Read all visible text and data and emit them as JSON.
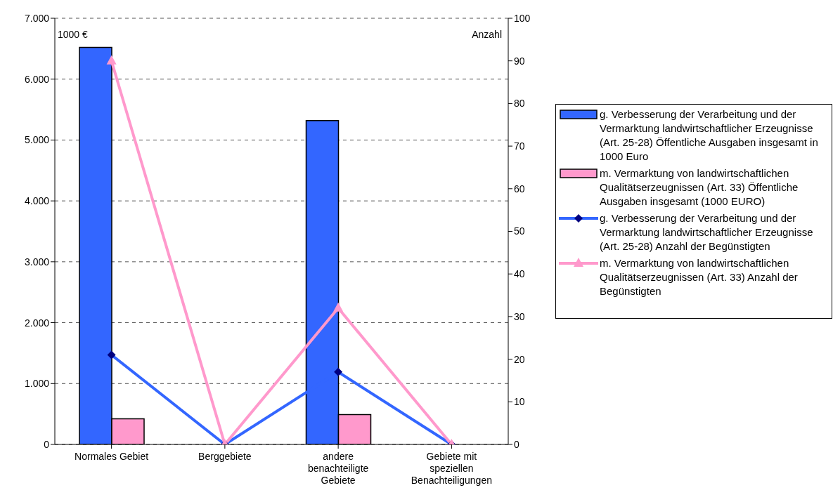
{
  "chart_data": {
    "type": "bar",
    "categories": [
      "Normales Gebiet",
      "Berggebiete",
      "andere benachteiligte Gebiete",
      "Gebiete mit speziellen Benachteiligungen"
    ],
    "ylabel": "1000 €",
    "y2label": "Anzahl",
    "ylim": [
      0,
      7000
    ],
    "yticks": [
      {
        "value": 0,
        "label": "0"
      },
      {
        "value": 1000,
        "label": "1.000"
      },
      {
        "value": 2000,
        "label": "2.000"
      },
      {
        "value": 3000,
        "label": "3.000"
      },
      {
        "value": 4000,
        "label": "4.000"
      },
      {
        "value": 5000,
        "label": "5.000"
      },
      {
        "value": 6000,
        "label": "6.000"
      },
      {
        "value": 7000,
        "label": "7.000"
      }
    ],
    "y2lim": [
      0,
      100
    ],
    "y2ticks": [
      0,
      10,
      20,
      30,
      40,
      50,
      60,
      70,
      80,
      90,
      100
    ],
    "grid": "y",
    "legend": "right",
    "series": [
      {
        "name": "g. Verbesserung der Verarbeitung und der Vermarktung landwirtschaftlicher Erzeugnisse (Art. 25-28) Öffentliche Ausgaben insgesamt in 1000 Euro",
        "color": "#3366ff",
        "values": [
          6520,
          0,
          5320,
          0
        ]
      },
      {
        "name": "m. Vermarktung von landwirtschaftlichen Qualitätserzeugnissen (Art. 33) Öffentliche Ausgaben insgesamt (1000 EURO)",
        "color": "#ff99cc",
        "values": [
          420,
          0,
          490,
          0
        ]
      },
      {
        "name": "g. Verbesserung der Verarbeitung und der Vermarktung landwirtschaftlicher Erzeugnisse (Art. 25-28) Anzahl der Begünstigten",
        "type": "line",
        "axis": "y2",
        "marker": "diamond",
        "color": "#3366ff",
        "values": [
          21,
          0,
          17,
          0
        ]
      },
      {
        "name": "m. Vermarktung von landwirtschaftlichen Qualitätserzeugnissen (Art. 33) Anzahl der Begünstigten",
        "type": "line",
        "axis": "y2",
        "marker": "triangle",
        "color": "#ff99cc",
        "values": [
          90,
          0,
          32,
          0
        ]
      }
    ]
  }
}
